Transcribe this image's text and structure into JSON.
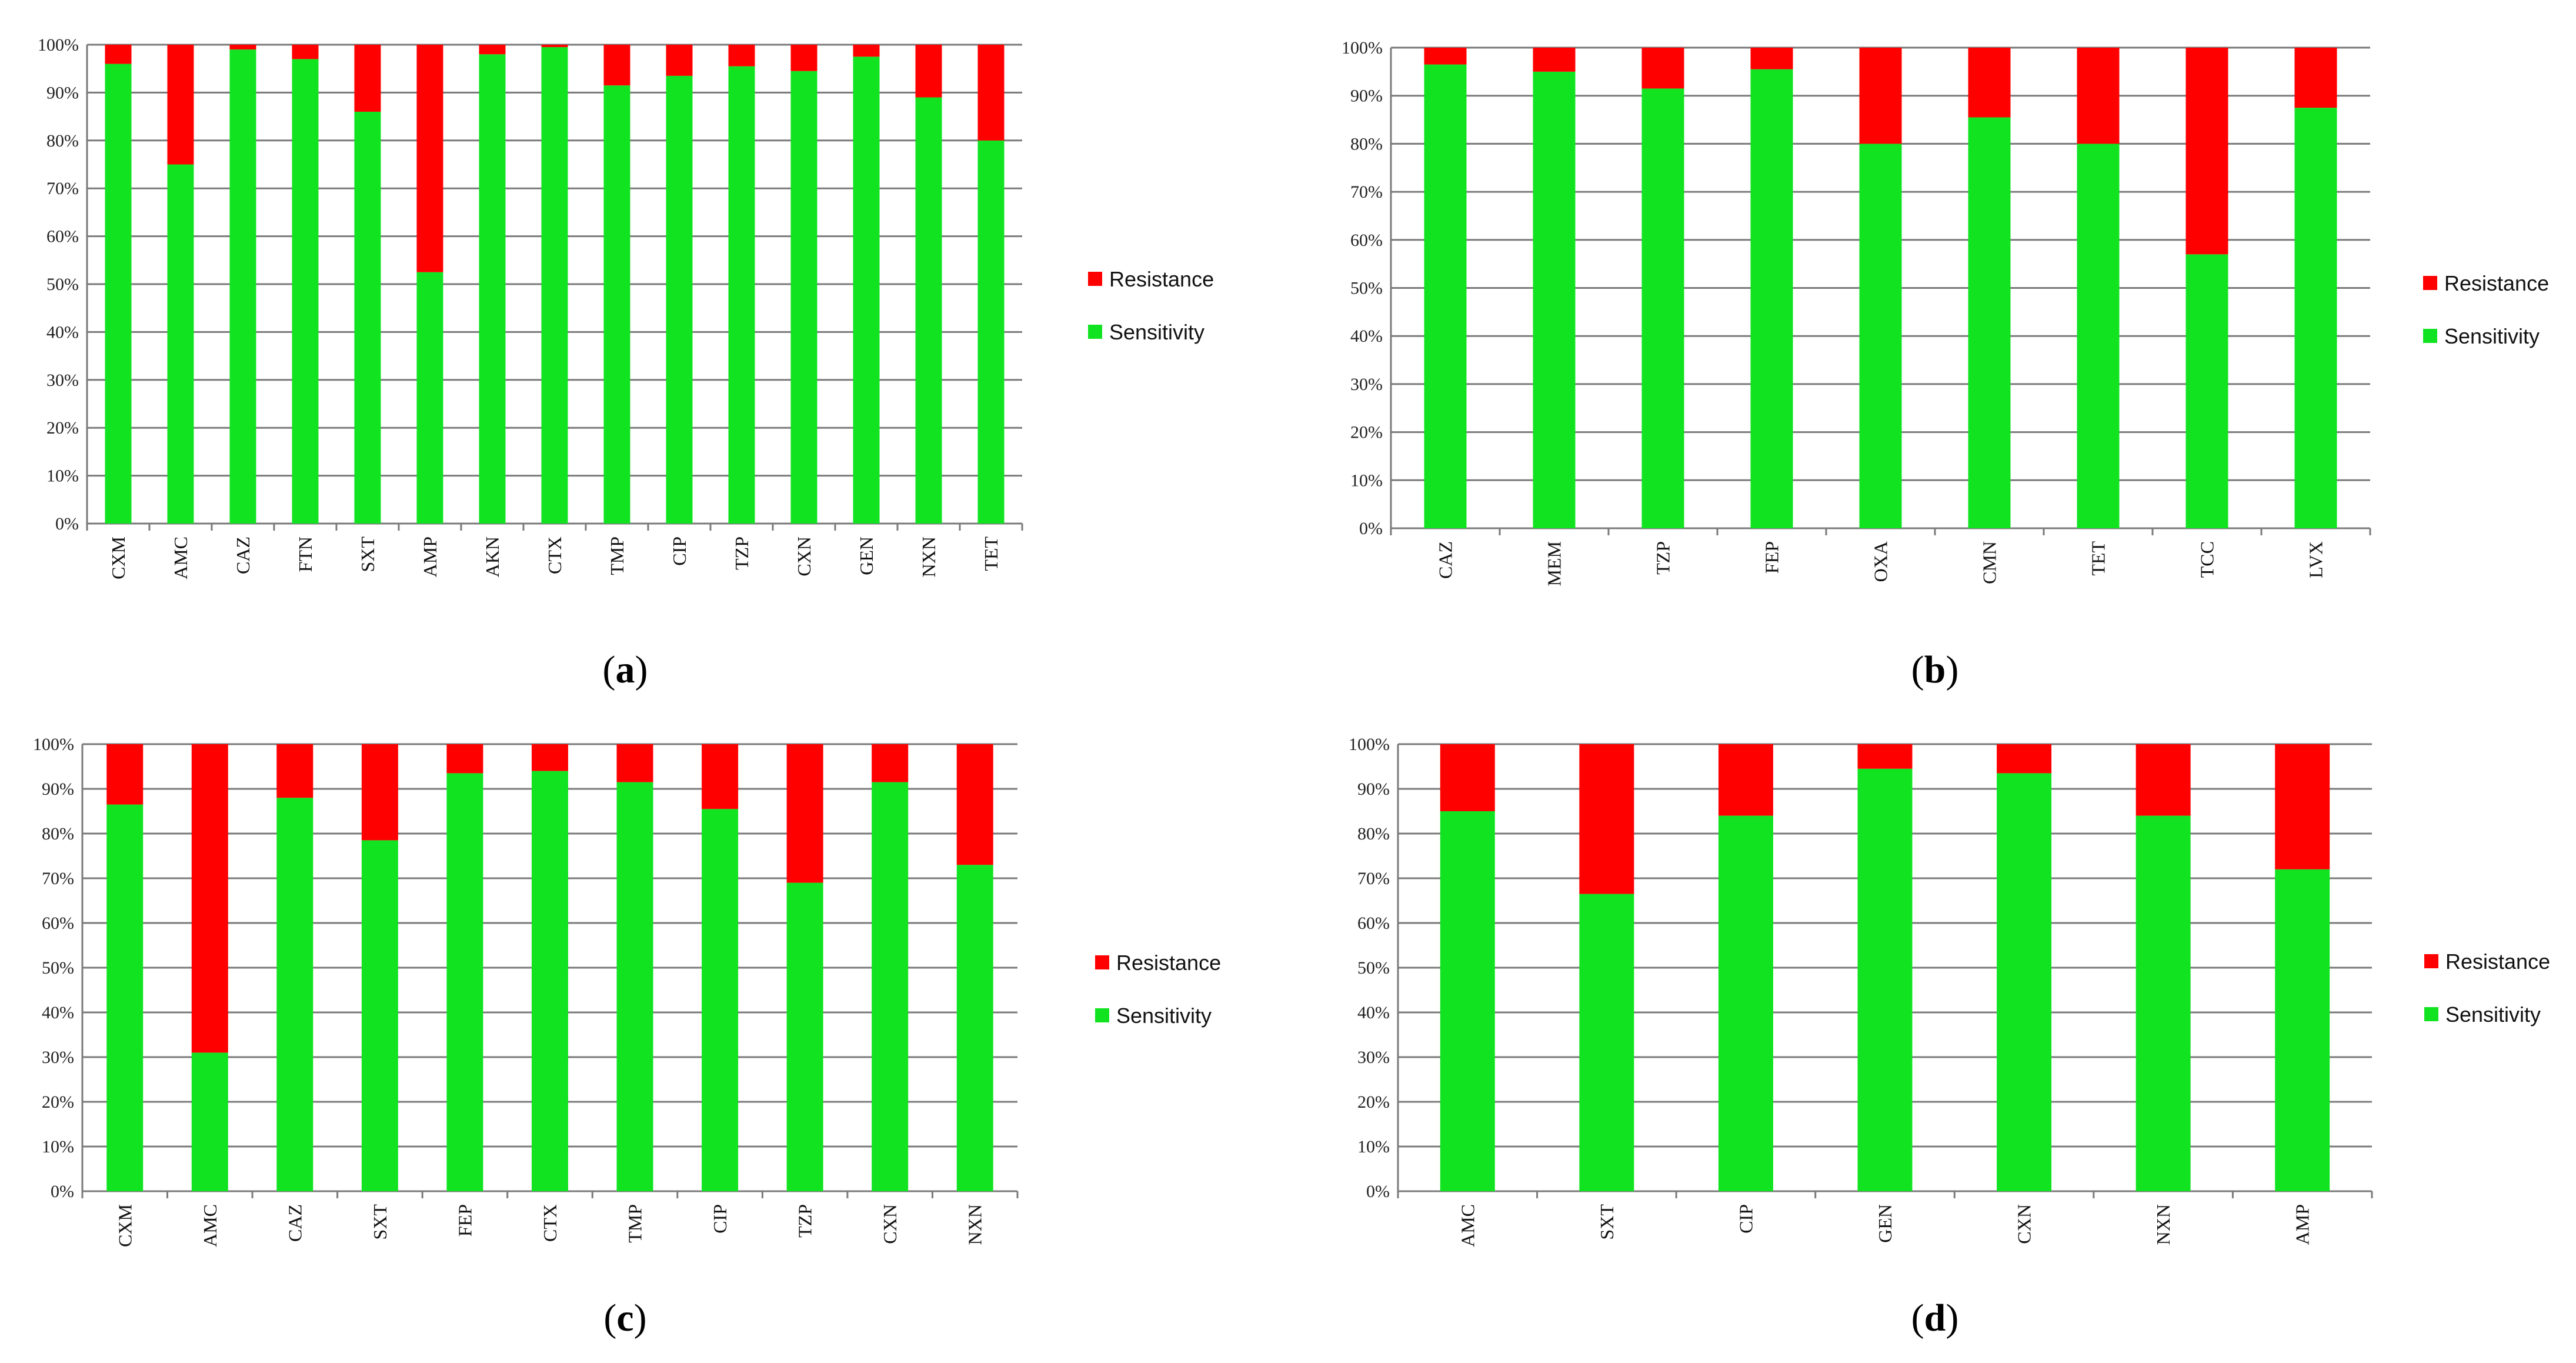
{
  "chart_data": [
    {
      "type": "bar",
      "stacked": true,
      "panel_label": "a",
      "categories": [
        "CXM",
        "AMC",
        "CAZ",
        "FTN",
        "SXT",
        "AMP",
        "AKN",
        "CTX",
        "TMP",
        "CIP",
        "TZP",
        "CXN",
        "GEN",
        "NXN",
        "TET"
      ],
      "series": [
        {
          "name": "Sensitivity",
          "color": "#11e321",
          "values": [
            96,
            75,
            99,
            97,
            86,
            52.5,
            98,
            99.5,
            91.5,
            93.5,
            95.5,
            94.5,
            97.5,
            89,
            80
          ]
        },
        {
          "name": "Resistance",
          "color": "#ff0000",
          "values": [
            4,
            25,
            1,
            3,
            14,
            47.5,
            2,
            0.5,
            8.5,
            6.5,
            4.5,
            5.5,
            2.5,
            11,
            20
          ]
        }
      ],
      "yticks": [
        "0%",
        "10%",
        "20%",
        "30%",
        "40%",
        "50%",
        "60%",
        "70%",
        "80%",
        "90%",
        "100%"
      ],
      "ylim": [
        0,
        100
      ],
      "legend": [
        "Resistance",
        "Sensitivity"
      ],
      "legend_position": "right",
      "grid": true
    },
    {
      "type": "bar",
      "stacked": true,
      "panel_label": "b",
      "categories": [
        "CAZ",
        "MEM",
        "TZP",
        "FEP",
        "OXA",
        "CMN",
        "TET",
        "TCC",
        "LVX"
      ],
      "series": [
        {
          "name": "Sensitivity",
          "color": "#11e321",
          "values": [
            96.5,
            95,
            91.5,
            95.5,
            80,
            85.5,
            80,
            57,
            87.5
          ]
        },
        {
          "name": "Resistance",
          "color": "#ff0000",
          "values": [
            3.5,
            5,
            8.5,
            4.5,
            20,
            14.5,
            20,
            43,
            12.5
          ]
        }
      ],
      "yticks": [
        "0%",
        "10%",
        "20%",
        "30%",
        "40%",
        "50%",
        "60%",
        "70%",
        "80%",
        "90%",
        "100%"
      ],
      "ylim": [
        0,
        100
      ],
      "legend": [
        "Resistance",
        "Sensitivity"
      ],
      "legend_position": "right",
      "grid": true
    },
    {
      "type": "bar",
      "stacked": true,
      "panel_label": "c",
      "categories": [
        "CXM",
        "AMC",
        "CAZ",
        "SXT",
        "FEP",
        "CTX",
        "TMP",
        "CIP",
        "TZP",
        "CXN",
        "NXN"
      ],
      "series": [
        {
          "name": "Sensitivity",
          "color": "#11e321",
          "values": [
            86.5,
            31,
            88,
            78.5,
            93.5,
            94,
            91.5,
            85.5,
            69,
            91.5,
            73
          ]
        },
        {
          "name": "Resistance",
          "color": "#ff0000",
          "values": [
            13.5,
            69,
            12,
            21.5,
            6.5,
            6,
            8.5,
            14.5,
            31,
            8.5,
            27
          ]
        }
      ],
      "yticks": [
        "0%",
        "10%",
        "20%",
        "30%",
        "40%",
        "50%",
        "60%",
        "70%",
        "80%",
        "90%",
        "100%"
      ],
      "ylim": [
        0,
        100
      ],
      "legend": [
        "Resistance",
        "Sensitivity"
      ],
      "legend_position": "right",
      "grid": true
    },
    {
      "type": "bar",
      "stacked": true,
      "panel_label": "d",
      "categories": [
        "AMC",
        "SXT",
        "CIP",
        "GEN",
        "CXN",
        "NXN",
        "AMP"
      ],
      "series": [
        {
          "name": "Sensitivity",
          "color": "#11e321",
          "values": [
            85,
            66.5,
            84,
            94.5,
            93.5,
            84,
            72
          ]
        },
        {
          "name": "Resistance",
          "color": "#ff0000",
          "values": [
            15,
            33.5,
            16,
            5.5,
            6.5,
            16,
            28
          ]
        }
      ],
      "yticks": [
        "0%",
        "10%",
        "20%",
        "30%",
        "40%",
        "50%",
        "60%",
        "70%",
        "80%",
        "90%",
        "100%"
      ],
      "ylim": [
        0,
        100
      ],
      "legend": [
        "Resistance",
        "Sensitivity"
      ],
      "legend_position": "right",
      "grid": true
    }
  ]
}
